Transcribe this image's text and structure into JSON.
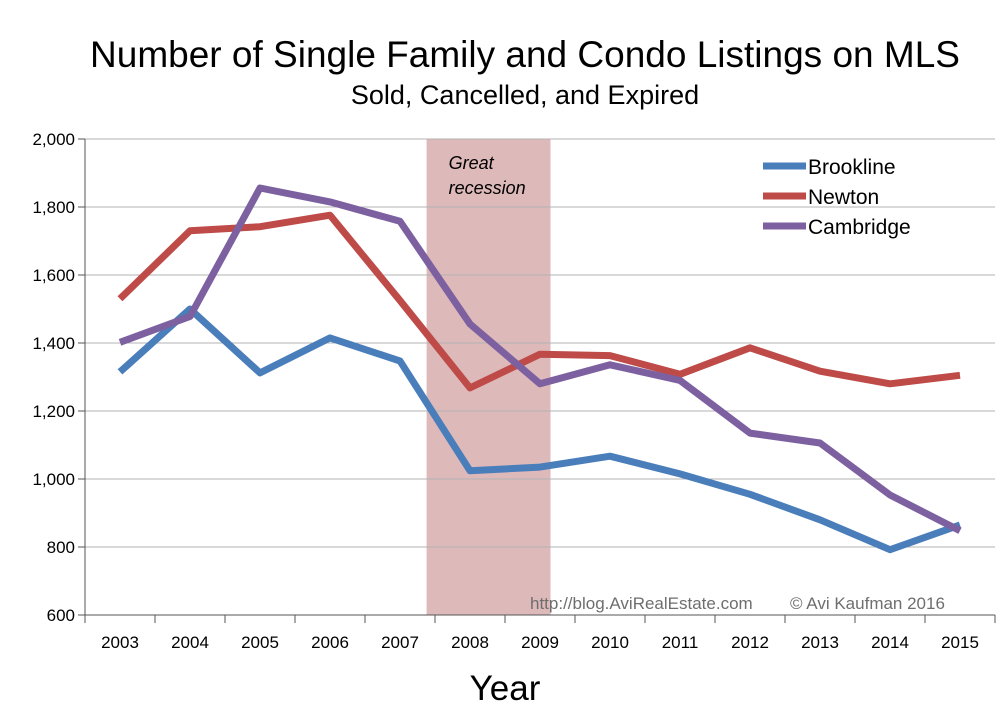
{
  "chart_data": {
    "type": "line",
    "title": "Number of Single Family and Condo Listings on MLS",
    "subtitle": "Sold, Cancelled, and Expired",
    "xlabel": "Year",
    "ylabel": "",
    "ylim": [
      600,
      2000
    ],
    "yticks": [
      600,
      800,
      1000,
      1200,
      1400,
      1600,
      1800,
      2000
    ],
    "ytick_labels": [
      "600",
      "800",
      "1,000",
      "1,200",
      "1,400",
      "1,600",
      "1,800",
      "2,000"
    ],
    "categories": [
      "2003",
      "2004",
      "2005",
      "2006",
      "2007",
      "2008",
      "2009",
      "2010",
      "2011",
      "2012",
      "2013",
      "2014",
      "2015"
    ],
    "grid": true,
    "legend_position": "top-right",
    "series": [
      {
        "name": "Brookline",
        "color": "#4a7ebb",
        "values": [
          1315,
          1500,
          1312,
          1415,
          1347,
          1024,
          1035,
          1067,
          1015,
          955,
          880,
          792,
          865
        ]
      },
      {
        "name": "Newton",
        "color": "#be4b48",
        "values": [
          1530,
          1730,
          1742,
          1776,
          1525,
          1268,
          1367,
          1363,
          1308,
          1386,
          1317,
          1280,
          1305
        ]
      },
      {
        "name": "Cambridge",
        "color": "#7d60a0",
        "values": [
          1402,
          1478,
          1856,
          1815,
          1758,
          1456,
          1280,
          1336,
          1290,
          1135,
          1106,
          953,
          848
        ]
      }
    ],
    "shaded_region": {
      "label_line1": "Great",
      "label_line2": "recession",
      "from_category": "2007",
      "to_category": "2009",
      "color": "#c98e8e"
    },
    "annotations": {
      "source": "http://blog.AviRealEstate.com",
      "copyright": "© Avi Kaufman 2016"
    }
  }
}
